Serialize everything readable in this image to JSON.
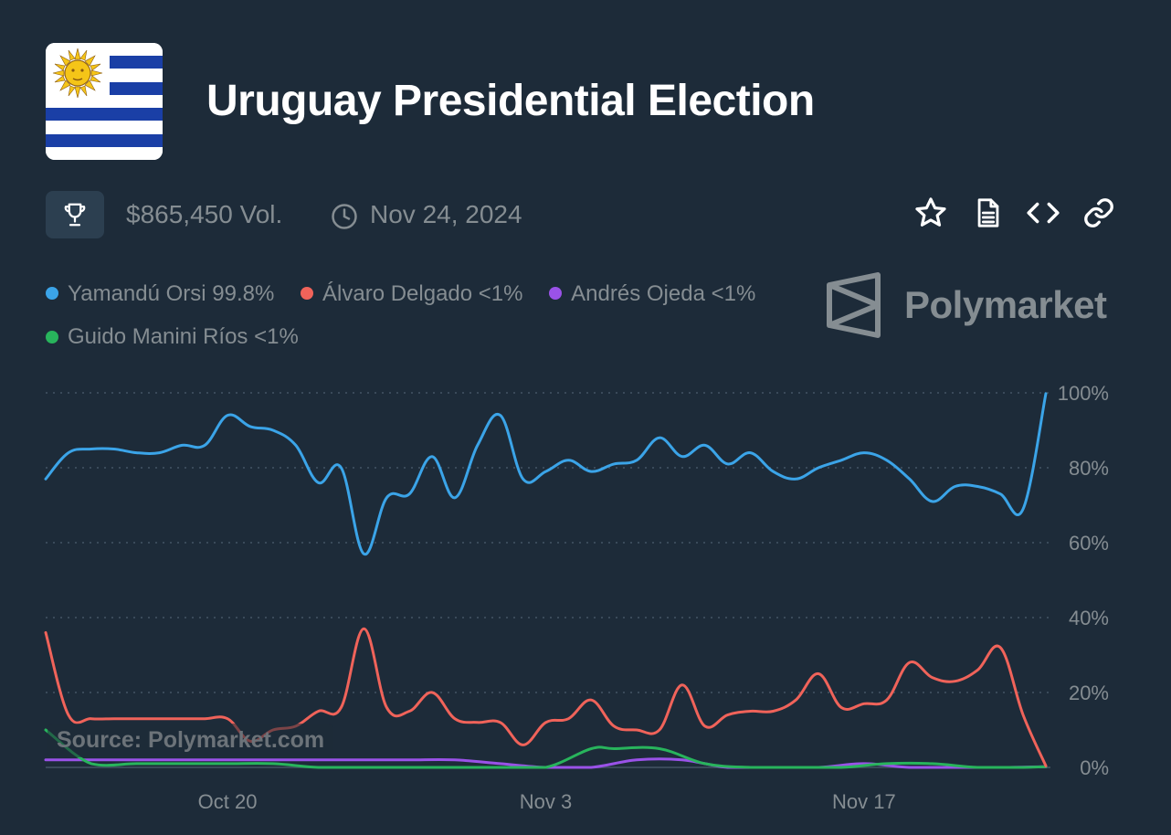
{
  "header": {
    "title": "Uruguay Presidential Election",
    "volume": "$865,450 Vol.",
    "end_date": "Nov 24, 2024"
  },
  "icons": {
    "trophy": "trophy-icon",
    "clock": "clock-icon",
    "star": "star-icon",
    "document": "document-icon",
    "embed": "embed-code-icon",
    "link": "link-icon",
    "brand": "polymarket-logo-icon"
  },
  "brand": {
    "name": "Polymarket"
  },
  "source": "Source: Polymarket.com",
  "legend": [
    {
      "label": "Yamandú Orsi 99.8%",
      "color": "#3ba4e8"
    },
    {
      "label": "Álvaro Delgado <1%",
      "color": "#f0635a"
    },
    {
      "label": "Andrés Ojeda <1%",
      "color": "#9a52e8"
    },
    {
      "label": "Guido Manini Ríos <1%",
      "color": "#28b45c"
    }
  ],
  "chart_data": {
    "type": "line",
    "x_ticks": [
      "Oct 20",
      "Nov 3",
      "Nov 17"
    ],
    "y_ticks": [
      "0%",
      "20%",
      "40%",
      "60%",
      "80%",
      "100%"
    ],
    "ylim": [
      0,
      100
    ],
    "grid": true,
    "series": [
      {
        "name": "Yamandú Orsi",
        "color": "#3ba4e8",
        "x": [
          "Oct 12",
          "Oct 13",
          "Oct 14",
          "Oct 15",
          "Oct 16",
          "Oct 17",
          "Oct 18",
          "Oct 19",
          "Oct 20",
          "Oct 21",
          "Oct 22",
          "Oct 23",
          "Oct 24",
          "Oct 25",
          "Oct 26",
          "Oct 27",
          "Oct 28",
          "Oct 29",
          "Oct 30",
          "Oct 31",
          "Nov 1",
          "Nov 2",
          "Nov 3",
          "Nov 4",
          "Nov 5",
          "Nov 6",
          "Nov 7",
          "Nov 8",
          "Nov 9",
          "Nov 10",
          "Nov 11",
          "Nov 12",
          "Nov 13",
          "Nov 14",
          "Nov 15",
          "Nov 16",
          "Nov 17",
          "Nov 18",
          "Nov 19",
          "Nov 20",
          "Nov 21",
          "Nov 22",
          "Nov 23",
          "Nov 24",
          "Nov 25"
        ],
        "values": [
          77,
          84,
          85,
          85,
          84,
          84,
          86,
          86,
          94,
          91,
          90,
          86,
          76,
          80,
          57,
          72,
          73,
          83,
          72,
          86,
          94,
          77,
          79,
          82,
          79,
          81,
          82,
          88,
          83,
          86,
          81,
          84,
          79,
          77,
          80,
          82,
          84,
          82,
          77,
          71,
          75,
          75,
          73,
          69,
          99.8
        ]
      },
      {
        "name": "Álvaro Delgado",
        "color": "#f0635a",
        "x": [
          "Oct 12",
          "Oct 13",
          "Oct 14",
          "Oct 15",
          "Oct 16",
          "Oct 17",
          "Oct 18",
          "Oct 19",
          "Oct 20",
          "Oct 21",
          "Oct 22",
          "Oct 23",
          "Oct 24",
          "Oct 25",
          "Oct 26",
          "Oct 27",
          "Oct 28",
          "Oct 29",
          "Oct 30",
          "Oct 31",
          "Nov 1",
          "Nov 2",
          "Nov 3",
          "Nov 4",
          "Nov 5",
          "Nov 6",
          "Nov 7",
          "Nov 8",
          "Nov 9",
          "Nov 10",
          "Nov 11",
          "Nov 12",
          "Nov 13",
          "Nov 14",
          "Nov 15",
          "Nov 16",
          "Nov 17",
          "Nov 18",
          "Nov 19",
          "Nov 20",
          "Nov 21",
          "Nov 22",
          "Nov 23",
          "Nov 24",
          "Nov 25"
        ],
        "values": [
          36,
          14,
          13,
          13,
          13,
          13,
          13,
          13,
          13,
          7,
          10,
          11,
          15,
          16,
          37,
          16,
          15,
          20,
          13,
          12,
          12,
          6,
          12,
          13,
          18,
          11,
          10,
          10,
          22,
          11,
          14,
          15,
          15,
          18,
          25,
          16,
          17,
          18,
          28,
          24,
          23,
          26,
          32,
          14,
          0.4
        ]
      },
      {
        "name": "Andrés Ojeda",
        "color": "#9a52e8",
        "x": [
          "Oct 12",
          "Oct 14",
          "Oct 16",
          "Oct 18",
          "Oct 20",
          "Oct 22",
          "Oct 24",
          "Oct 26",
          "Oct 28",
          "Oct 30",
          "Nov 1",
          "Nov 3",
          "Nov 5",
          "Nov 7",
          "Nov 9",
          "Nov 11",
          "Nov 13",
          "Nov 15",
          "Nov 17",
          "Nov 19",
          "Nov 21",
          "Nov 23",
          "Nov 25"
        ],
        "values": [
          2,
          2,
          2,
          2,
          2,
          2,
          2,
          2,
          2,
          2,
          1,
          0,
          0,
          2,
          2,
          0,
          0,
          0,
          1,
          0,
          0,
          0,
          0.2
        ]
      },
      {
        "name": "Guido Manini Ríos",
        "color": "#28b45c",
        "x": [
          "Oct 12",
          "Oct 14",
          "Oct 16",
          "Oct 18",
          "Oct 20",
          "Oct 22",
          "Oct 24",
          "Oct 26",
          "Oct 28",
          "Oct 30",
          "Nov 1",
          "Nov 3",
          "Nov 5",
          "Nov 6",
          "Nov 8",
          "Nov 10",
          "Nov 12",
          "Nov 14",
          "Nov 16",
          "Nov 18",
          "Nov 20",
          "Nov 22",
          "Nov 24",
          "Nov 25"
        ],
        "values": [
          10,
          1,
          1,
          1,
          1,
          1,
          0,
          0,
          0,
          0,
          0,
          0,
          5,
          5,
          5,
          1,
          0,
          0,
          0,
          1,
          1,
          0,
          0,
          0.2
        ]
      }
    ]
  }
}
